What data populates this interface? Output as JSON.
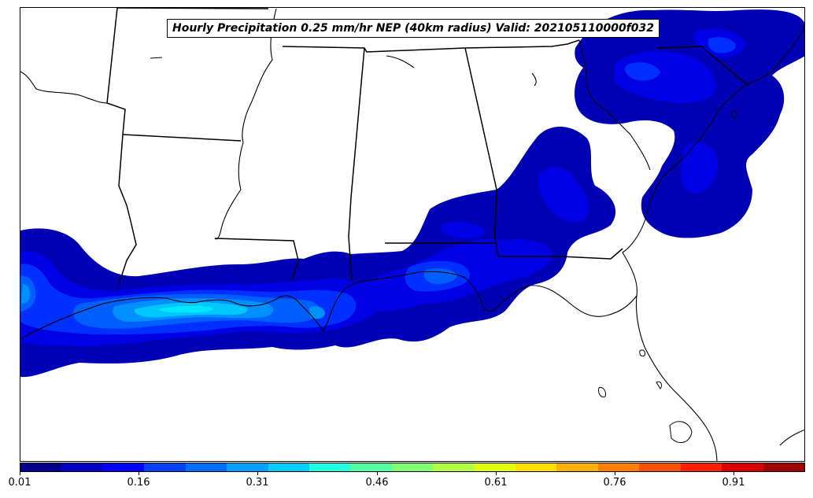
{
  "title": "Hourly Precipitation 0.25 mm/hr NEP (40km radius) Valid: 202105110000f032",
  "colorbar": {
    "colors": [
      "#00008c",
      "#0000c8",
      "#0000ff",
      "#0040ff",
      "#0070ff",
      "#00a0ff",
      "#00d0ff",
      "#20ffe0",
      "#50ffa0",
      "#80ff70",
      "#b0ff40",
      "#e0ff10",
      "#ffe000",
      "#ffb000",
      "#ff8000",
      "#ff5000",
      "#ff2000",
      "#d80000",
      "#a00000"
    ],
    "tick_labels": [
      "0.01",
      "0.16",
      "0.31",
      "0.46",
      "0.61",
      "0.76",
      "0.91"
    ],
    "tick_values": [
      0.01,
      0.16,
      0.31,
      0.46,
      0.61,
      0.76,
      0.91
    ],
    "min": 0.01,
    "max": 1.0
  }
}
